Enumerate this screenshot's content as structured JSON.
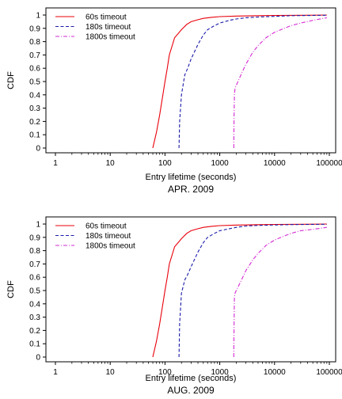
{
  "chart_data": [
    {
      "type": "line",
      "xscale": "log",
      "xlim": [
        1,
        100000
      ],
      "ylim": [
        0,
        1
      ],
      "xlabel": "Entry lifetime (seconds)",
      "ylabel": "CDF",
      "caption": "APR. 2009",
      "legend_position": "top-left",
      "grid": false,
      "xticks": [
        "1",
        "10",
        "100",
        "1000",
        "10000",
        "100000"
      ],
      "yticks": [
        "0",
        "0.1",
        "0.2",
        "0.3",
        "0.4",
        "0.5",
        "0.6",
        "0.7",
        "0.8",
        "0.9",
        "1"
      ],
      "series": [
        {
          "name": "60s timeout",
          "color": "#e8000b",
          "dash": "solid",
          "x": [
            60,
            70,
            80,
            90,
            100,
            110,
            120,
            150,
            200,
            250,
            300,
            400,
            500,
            700,
            1000,
            2000,
            5000,
            10000,
            30000,
            90000
          ],
          "y": [
            0,
            0.12,
            0.25,
            0.38,
            0.5,
            0.6,
            0.7,
            0.83,
            0.89,
            0.93,
            0.95,
            0.965,
            0.975,
            0.983,
            0.988,
            0.992,
            0.995,
            0.997,
            0.998,
            1
          ]
        },
        {
          "name": "180s timeout",
          "color": "#1a1aaa",
          "dash": "dashed",
          "x": [
            180,
            185,
            200,
            230,
            260,
            300,
            400,
            500,
            600,
            800,
            1000,
            1500,
            2000,
            3000,
            5000,
            10000,
            20000,
            90000
          ],
          "y": [
            0,
            0.2,
            0.4,
            0.55,
            0.6,
            0.67,
            0.78,
            0.85,
            0.89,
            0.92,
            0.94,
            0.96,
            0.97,
            0.98,
            0.985,
            0.99,
            0.995,
            0.998
          ]
        },
        {
          "name": "1800s timeout",
          "color": "#d42ad4",
          "dash": "dashdot",
          "x": [
            1800,
            1820,
            1850,
            1900,
            2000,
            2500,
            3000,
            4000,
            5000,
            7000,
            10000,
            15000,
            20000,
            30000,
            50000,
            90000
          ],
          "y": [
            0,
            0.2,
            0.4,
            0.45,
            0.47,
            0.56,
            0.63,
            0.72,
            0.77,
            0.83,
            0.87,
            0.9,
            0.92,
            0.94,
            0.96,
            0.98
          ]
        }
      ]
    },
    {
      "type": "line",
      "xscale": "log",
      "xlim": [
        1,
        100000
      ],
      "ylim": [
        0,
        1
      ],
      "xlabel": "Entry lifetime (seconds)",
      "ylabel": "CDF",
      "caption": "AUG. 2009",
      "legend_position": "top-left",
      "grid": false,
      "xticks": [
        "1",
        "10",
        "100",
        "1000",
        "10000",
        "100000"
      ],
      "yticks": [
        "0",
        "0.1",
        "0.2",
        "0.3",
        "0.4",
        "0.5",
        "0.6",
        "0.7",
        "0.8",
        "0.9",
        "1"
      ],
      "series": [
        {
          "name": "60s timeout",
          "color": "#e8000b",
          "dash": "solid",
          "x": [
            60,
            70,
            80,
            90,
            100,
            110,
            120,
            150,
            200,
            250,
            300,
            400,
            500,
            700,
            1000,
            2000,
            5000,
            10000,
            30000,
            90000
          ],
          "y": [
            0,
            0.12,
            0.25,
            0.38,
            0.5,
            0.6,
            0.7,
            0.83,
            0.89,
            0.93,
            0.95,
            0.965,
            0.975,
            0.983,
            0.988,
            0.992,
            0.995,
            0.997,
            0.998,
            1
          ]
        },
        {
          "name": "180s timeout",
          "color": "#1a1aaa",
          "dash": "dashed",
          "x": [
            180,
            185,
            200,
            230,
            260,
            300,
            400,
            500,
            600,
            800,
            1000,
            1500,
            2000,
            3000,
            5000,
            10000,
            20000,
            90000
          ],
          "y": [
            0,
            0.25,
            0.48,
            0.58,
            0.62,
            0.68,
            0.79,
            0.86,
            0.9,
            0.93,
            0.95,
            0.965,
            0.975,
            0.985,
            0.99,
            0.993,
            0.996,
            0.998
          ]
        },
        {
          "name": "1800s timeout",
          "color": "#d42ad4",
          "dash": "dashdot",
          "x": [
            1800,
            1820,
            1850,
            1900,
            2000,
            2500,
            3000,
            4000,
            5000,
            7000,
            10000,
            15000,
            20000,
            30000,
            50000,
            90000
          ],
          "y": [
            0,
            0.2,
            0.45,
            0.48,
            0.5,
            0.58,
            0.65,
            0.73,
            0.78,
            0.84,
            0.88,
            0.91,
            0.93,
            0.95,
            0.96,
            0.975
          ]
        }
      ]
    }
  ]
}
